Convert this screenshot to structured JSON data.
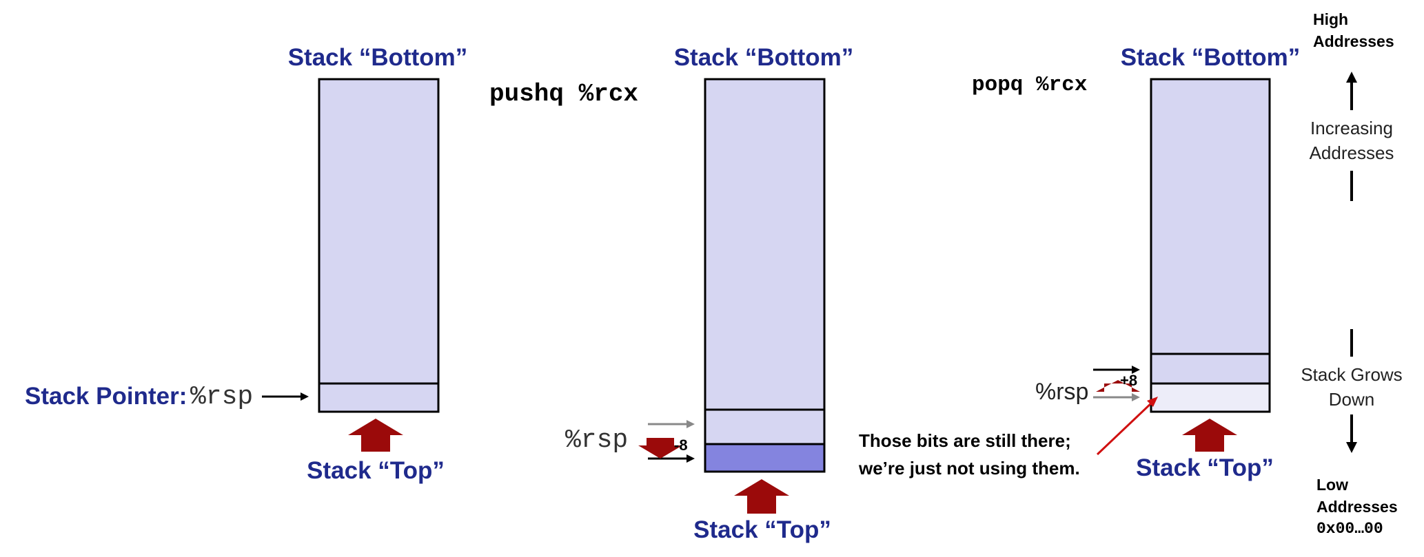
{
  "stacks": {
    "left": {
      "bottom_label": "Stack “Bottom”",
      "top_label": "Stack “Top”",
      "pointer_label": "Stack Pointer:",
      "pointer_reg": "%rsp"
    },
    "middle": {
      "instruction": "pushq %rcx",
      "bottom_label": "Stack “Bottom”",
      "top_label": "Stack “Top”",
      "pointer_reg": "%rsp",
      "offset": "-8"
    },
    "right": {
      "instruction": "popq %rcx",
      "bottom_label": "Stack “Bottom”",
      "top_label": "Stack “Top”",
      "pointer_reg": "%rsp",
      "offset": "+8",
      "note_line1": "Those bits are still there;",
      "note_line2": "we’re just not using them."
    }
  },
  "legend": {
    "high_line1": "High",
    "high_line2": "Addresses",
    "increasing_line1": "Increasing",
    "increasing_line2": "Addresses",
    "grows_line1": "Stack Grows",
    "grows_line2": "Down",
    "low_line1": "Low",
    "low_line2": "Addresses",
    "low_line3": "0x00…00"
  },
  "colors": {
    "title_blue": "#1f2a8c",
    "stack_fill": "#d6d6f2",
    "pushed_fill": "#8484df",
    "popped_fill": "#ededf9",
    "big_arrow": "#9b0a0a",
    "pointer_gray": "#888888",
    "note_red": "#d01010"
  }
}
